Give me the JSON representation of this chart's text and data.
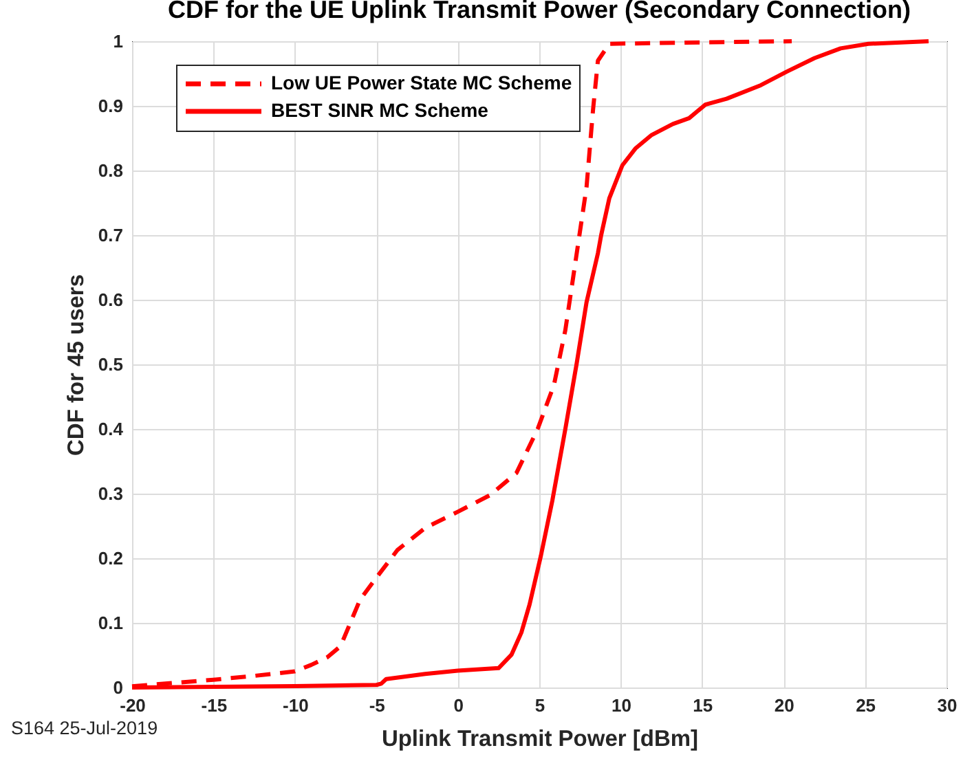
{
  "chart_data": {
    "type": "line",
    "title": "CDF for the UE Uplink Transmit Power (Secondary Connection)",
    "xlabel": "Uplink Transmit Power [dBm]",
    "ylabel": "CDF for 45 users",
    "annotations": [
      "S164 25-Jul-2019"
    ],
    "series": [
      {
        "name": "Low UE Power State MC Scheme",
        "color": "#ff0000",
        "line_style": "dashed",
        "x": [
          -20,
          -17.5,
          -15,
          -12.5,
          -10,
          -9,
          -8,
          -7.2,
          -6.7,
          -6,
          -5,
          -3.7,
          -2,
          0,
          2,
          3.6,
          4.9,
          5.9,
          6.6,
          7.1,
          7.6,
          7.9,
          8.3,
          8.6,
          9.3,
          14,
          20.5
        ],
        "values": [
          0.002,
          0.007,
          0.012,
          0.018,
          0.025,
          0.035,
          0.047,
          0.064,
          0.094,
          0.136,
          0.17,
          0.213,
          0.247,
          0.272,
          0.298,
          0.332,
          0.4,
          0.468,
          0.553,
          0.638,
          0.723,
          0.774,
          0.894,
          0.97,
          0.996,
          0.998,
          1
        ]
      },
      {
        "name": "BEST SINR MC Scheme",
        "color": "#ff0000",
        "line_style": "solid",
        "x": [
          -20,
          -10,
          -5,
          -4.7,
          -4.4,
          -2,
          0,
          2.5,
          3.3,
          3.9,
          4.4,
          5.1,
          5.8,
          6.6,
          7.3,
          7.9,
          8.6,
          8.8,
          9.3,
          10.1,
          10.9,
          11.9,
          13.2,
          14.2,
          15.2,
          16.5,
          18.6,
          20.2,
          21.9,
          23.5,
          25.2,
          28.9
        ],
        "values": [
          0,
          0.002,
          0.004,
          0.006,
          0.013,
          0.021,
          0.026,
          0.03,
          0.051,
          0.085,
          0.128,
          0.204,
          0.289,
          0.4,
          0.502,
          0.596,
          0.672,
          0.7,
          0.757,
          0.808,
          0.834,
          0.855,
          0.872,
          0.881,
          0.902,
          0.911,
          0.932,
          0.953,
          0.974,
          0.989,
          0.996,
          1
        ]
      }
    ],
    "xlim": [
      -20,
      30
    ],
    "xticks": [
      -20,
      -15,
      -10,
      -5,
      0,
      5,
      10,
      15,
      20,
      25,
      30
    ],
    "ylim": [
      0,
      1
    ],
    "yticks": [
      0,
      0.1,
      0.2,
      0.3,
      0.4,
      0.5,
      0.6,
      0.7,
      0.8,
      0.9,
      1
    ],
    "grid": true,
    "legend": "top left"
  }
}
